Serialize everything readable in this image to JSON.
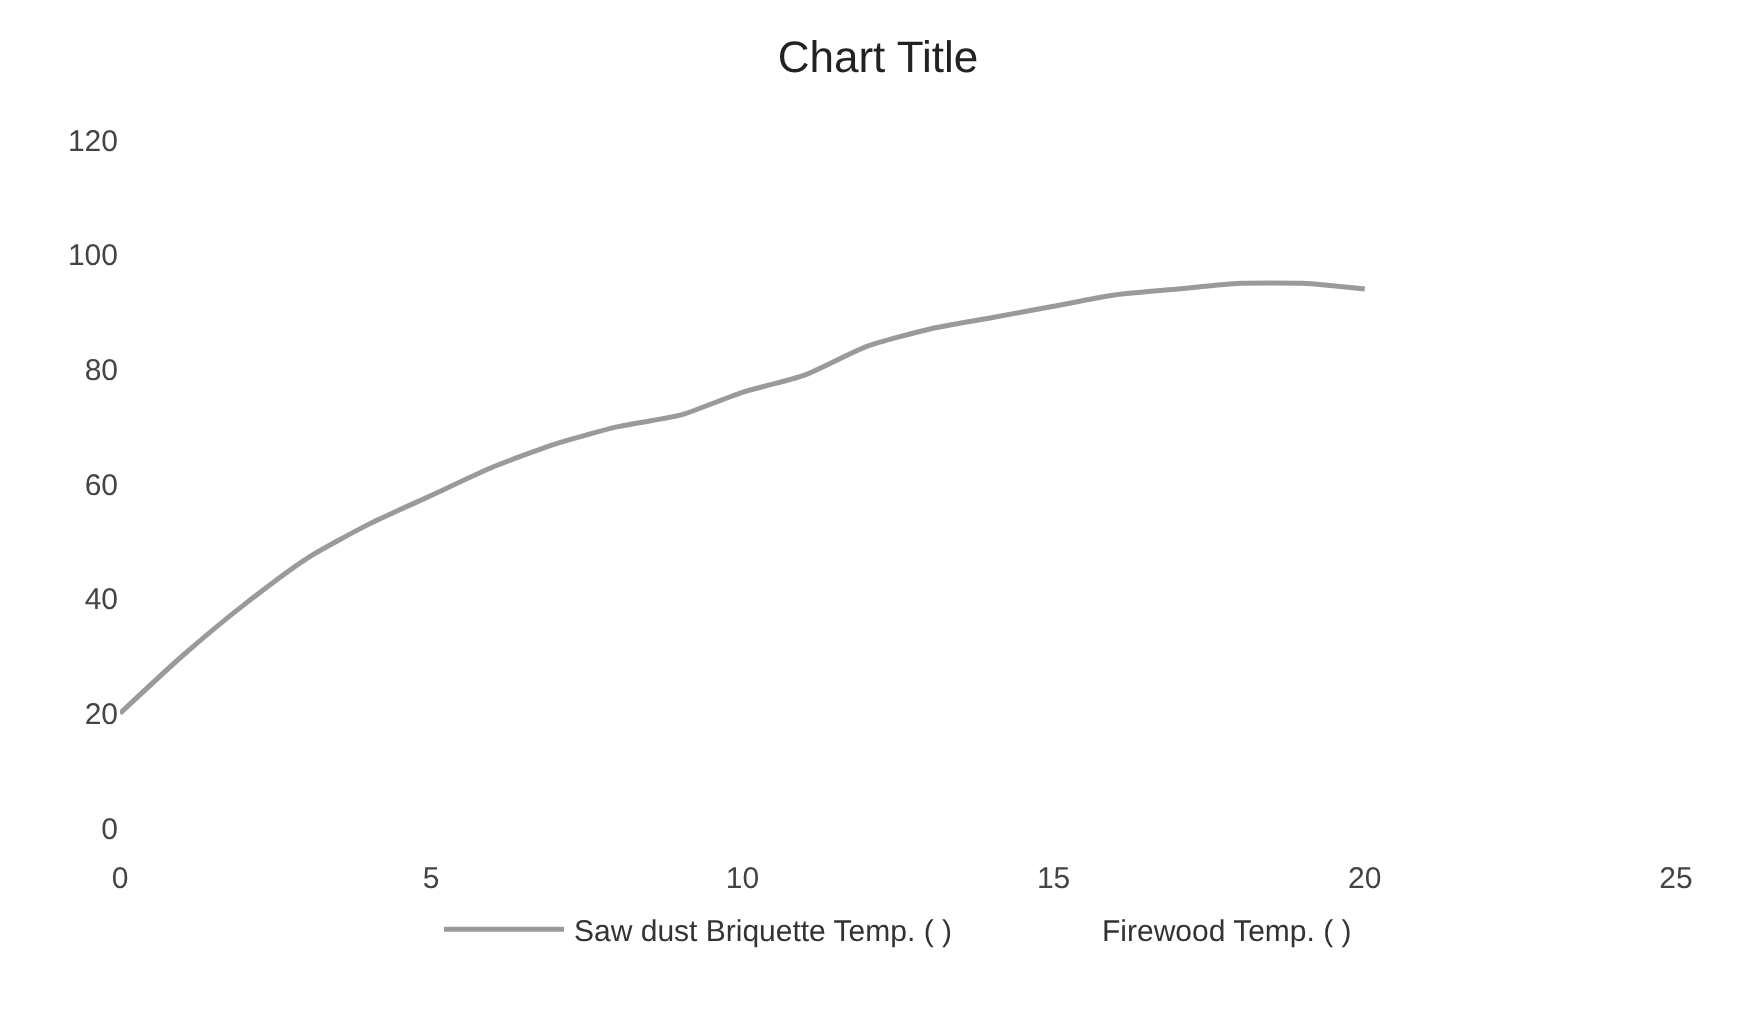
{
  "chart_data": {
    "type": "line",
    "title": "Chart Title",
    "x": [
      0,
      1,
      2,
      3,
      4,
      5,
      6,
      7,
      8,
      9,
      10,
      11,
      12,
      13,
      14,
      15,
      16,
      17,
      18,
      19,
      20
    ],
    "series": [
      {
        "name": "Saw dust Briquette Temp. ( )",
        "color": "#9a9a9a",
        "values": [
          20,
          30,
          39,
          47,
          53,
          58,
          63,
          67,
          70,
          72,
          76,
          79,
          84,
          87,
          89,
          91,
          93,
          94,
          95,
          95,
          94
        ]
      },
      {
        "name": "Firewood Temp. ( )",
        "values": [
          null,
          null,
          null,
          null,
          null,
          null,
          null,
          null,
          null,
          null,
          null,
          null,
          null,
          null,
          null,
          null,
          null,
          null,
          null,
          null,
          null
        ]
      }
    ],
    "xlim": [
      0,
      25
    ],
    "xticks": [
      0,
      5,
      10,
      15,
      20,
      25
    ],
    "ylim": [
      0,
      120
    ],
    "yticks": [
      0,
      20,
      40,
      60,
      80,
      100,
      120
    ],
    "grid": false,
    "legend": "bottom",
    "marker": "none",
    "line_style": "solid"
  }
}
